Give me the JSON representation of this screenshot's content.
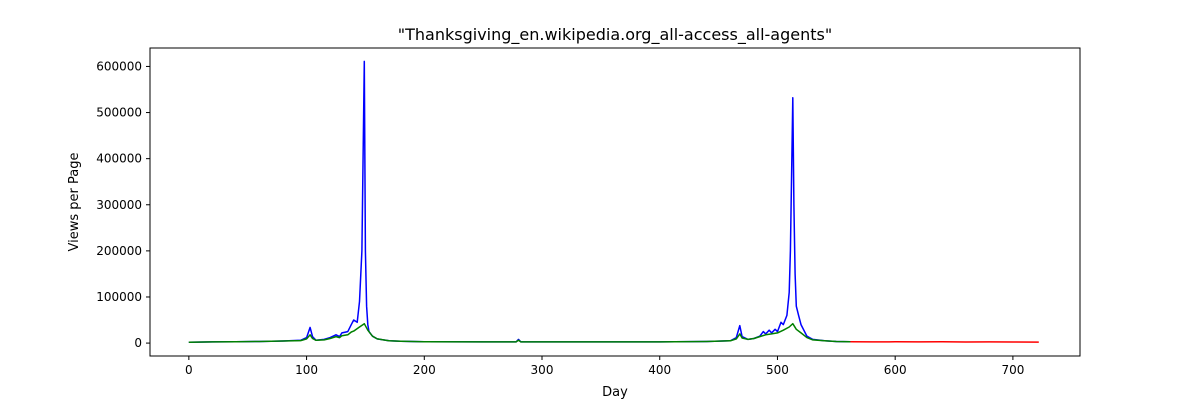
{
  "chart_data": {
    "type": "line",
    "title": "\"Thanksgiving_en.wikipedia.org_all-access_all-agents\"",
    "xlabel": "Day",
    "ylabel": "Views per Page",
    "xlim": [
      -33,
      757
    ],
    "ylim": [
      -28000,
      640000
    ],
    "x_ticks": [
      0,
      100,
      200,
      300,
      400,
      500,
      600,
      700
    ],
    "y_ticks": [
      0,
      100000,
      200000,
      300000,
      400000,
      500000,
      600000
    ],
    "grid": false,
    "legend": "none",
    "series": [
      {
        "color": "#0000ff",
        "x": [
          0,
          20,
          40,
          60,
          80,
          95,
          100,
          103,
          105,
          108,
          115,
          120,
          125,
          128,
          130,
          135,
          138,
          140,
          143,
          145,
          147,
          149,
          150,
          151,
          152,
          153,
          156,
          160,
          170,
          180,
          190,
          200,
          250,
          278,
          280,
          282,
          300,
          350,
          400,
          440,
          460,
          465,
          468,
          470,
          475,
          480,
          485,
          488,
          490,
          493,
          495,
          498,
          500,
          503,
          505,
          508,
          510,
          511,
          513,
          514,
          515,
          516,
          518,
          520,
          525,
          530,
          540,
          550,
          562
        ],
        "y": [
          2000,
          2500,
          3000,
          3500,
          4500,
          6000,
          12000,
          34000,
          14000,
          6000,
          8000,
          12000,
          18000,
          14000,
          22000,
          25000,
          40000,
          50000,
          45000,
          90000,
          200000,
          611000,
          200000,
          80000,
          40000,
          25000,
          15000,
          9000,
          5000,
          4000,
          3500,
          3000,
          2500,
          2500,
          8000,
          2500,
          2500,
          2500,
          2500,
          3500,
          5000,
          12000,
          38000,
          14000,
          8000,
          10000,
          15000,
          25000,
          20000,
          28000,
          22000,
          30000,
          25000,
          45000,
          40000,
          60000,
          110000,
          200000,
          532000,
          300000,
          150000,
          80000,
          60000,
          40000,
          15000,
          8000,
          5000,
          3500,
          3000
        ]
      },
      {
        "color": "#008000",
        "x": [
          0,
          20,
          40,
          60,
          80,
          95,
          100,
          103,
          105,
          108,
          115,
          120,
          125,
          128,
          130,
          135,
          138,
          140,
          145,
          149,
          152,
          156,
          160,
          170,
          180,
          190,
          200,
          250,
          278,
          280,
          282,
          300,
          350,
          400,
          440,
          460,
          465,
          468,
          470,
          475,
          480,
          485,
          490,
          495,
          500,
          505,
          510,
          513,
          516,
          520,
          525,
          530,
          540,
          550,
          562
        ],
        "y": [
          2000,
          2500,
          3000,
          3500,
          4500,
          5500,
          9000,
          18000,
          10000,
          6000,
          7000,
          10000,
          14000,
          12000,
          16000,
          18000,
          24000,
          26000,
          35000,
          42000,
          28000,
          15000,
          9000,
          5000,
          4000,
          3500,
          3000,
          2500,
          2500,
          6000,
          2500,
          2500,
          2500,
          2500,
          3500,
          5000,
          9000,
          20000,
          11000,
          8000,
          10000,
          14000,
          18000,
          20000,
          22000,
          28000,
          35000,
          42000,
          30000,
          22000,
          12000,
          7000,
          5000,
          3500,
          3000
        ]
      },
      {
        "color": "#ff0000",
        "x": [
          562,
          580,
          600,
          620,
          640,
          660,
          680,
          700,
          722
        ],
        "y": [
          2800,
          2600,
          2800,
          2500,
          2700,
          2400,
          2600,
          2300,
          2200
        ]
      }
    ]
  }
}
